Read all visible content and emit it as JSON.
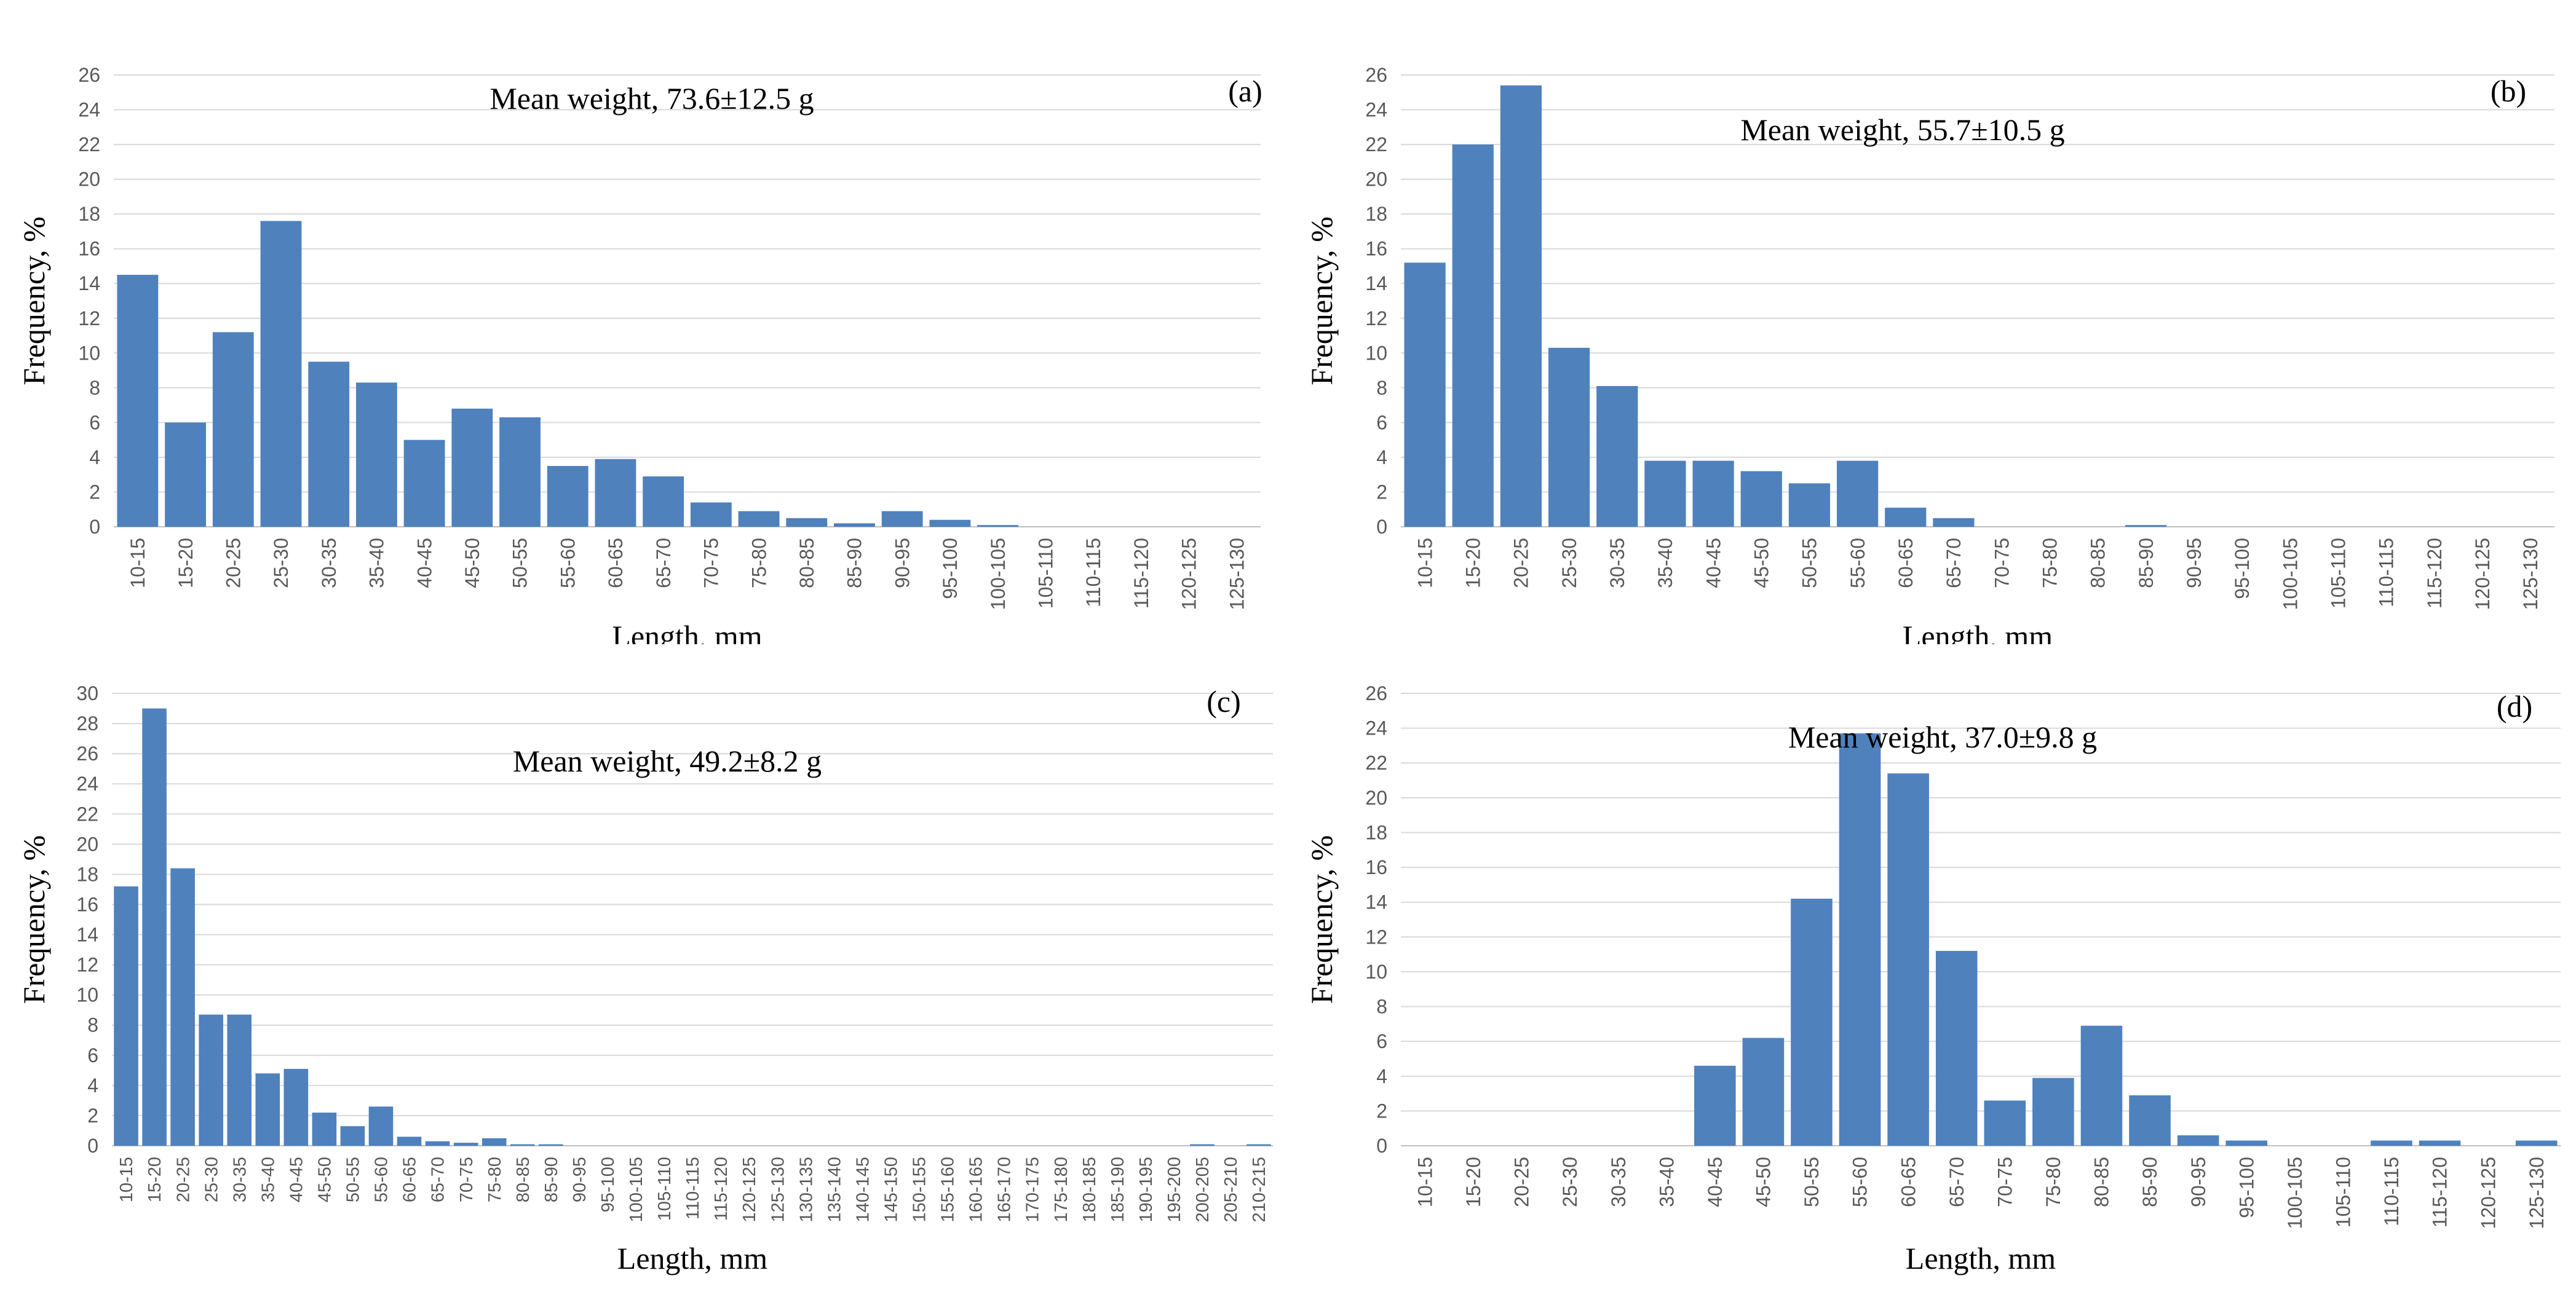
{
  "chart_data": [
    {
      "type": "bar",
      "panel_label": "(a)",
      "annotation": "Mean weight, 73.6±12.5 g",
      "xlabel": "Length, mm",
      "ylabel": "Frequency, %",
      "ylim": [
        0,
        26
      ],
      "yticks": [
        0,
        2,
        4,
        6,
        8,
        10,
        12,
        14,
        16,
        18,
        20,
        22,
        24,
        26
      ],
      "grid": true,
      "color": "#4f81bd",
      "categories": [
        "10-15",
        "15-20",
        "20-25",
        "25-30",
        "30-35",
        "35-40",
        "40-45",
        "45-50",
        "50-55",
        "55-60",
        "60-65",
        "65-70",
        "70-75",
        "75-80",
        "80-85",
        "85-90",
        "90-95",
        "95-100",
        "100-105",
        "105-110",
        "110-115",
        "115-120",
        "120-125",
        "125-130"
      ],
      "values": [
        14.5,
        6.0,
        11.2,
        17.6,
        9.5,
        8.3,
        5.0,
        6.8,
        6.3,
        3.5,
        3.9,
        2.9,
        1.4,
        0.9,
        0.5,
        0.2,
        0.9,
        0.4,
        0.1,
        0,
        0,
        0,
        0,
        0
      ]
    },
    {
      "type": "bar",
      "panel_label": "(b)",
      "annotation": "Mean weight, 55.7±10.5 g",
      "xlabel": "Length, mm",
      "ylabel": "Frequency, %",
      "ylim": [
        0,
        26
      ],
      "yticks": [
        0,
        2,
        4,
        6,
        8,
        10,
        12,
        14,
        16,
        18,
        20,
        22,
        24,
        26
      ],
      "grid": true,
      "color": "#4f81bd",
      "categories": [
        "10-15",
        "15-20",
        "20-25",
        "25-30",
        "30-35",
        "35-40",
        "40-45",
        "45-50",
        "50-55",
        "55-60",
        "60-65",
        "65-70",
        "70-75",
        "75-80",
        "80-85",
        "85-90",
        "90-95",
        "95-100",
        "100-105",
        "105-110",
        "110-115",
        "115-120",
        "120-125",
        "125-130"
      ],
      "values": [
        15.2,
        22.0,
        25.4,
        10.3,
        8.1,
        3.8,
        3.8,
        3.2,
        2.5,
        3.8,
        1.1,
        0.5,
        0,
        0,
        0,
        0.1,
        0,
        0,
        0,
        0,
        0,
        0,
        0,
        0
      ]
    },
    {
      "type": "bar",
      "panel_label": "(c)",
      "annotation": "Mean weight, 49.2±8.2 g",
      "xlabel": "Length, mm",
      "ylabel": "Frequency, %",
      "ylim": [
        0,
        30
      ],
      "yticks": [
        0,
        2,
        4,
        6,
        8,
        10,
        12,
        14,
        16,
        18,
        20,
        22,
        24,
        26,
        28,
        30
      ],
      "grid": true,
      "color": "#4f81bd",
      "categories": [
        "10-15",
        "15-20",
        "20-25",
        "25-30",
        "30-35",
        "35-40",
        "40-45",
        "45-50",
        "50-55",
        "55-60",
        "60-65",
        "65-70",
        "70-75",
        "75-80",
        "80-85",
        "85-90",
        "90-95",
        "95-100",
        "100-105",
        "105-110",
        "110-115",
        "115-120",
        "120-125",
        "125-130",
        "130-135",
        "135-140",
        "140-145",
        "145-150",
        "150-155",
        "155-160",
        "160-165",
        "165-170",
        "170-175",
        "175-180",
        "180-185",
        "185-190",
        "190-195",
        "195-200",
        "200-205",
        "205-210",
        "210-215"
      ],
      "values": [
        17.2,
        29.0,
        18.4,
        8.7,
        8.7,
        4.8,
        5.1,
        2.2,
        1.3,
        2.6,
        0.6,
        0.3,
        0.2,
        0.5,
        0.1,
        0.1,
        0,
        0,
        0,
        0,
        0,
        0,
        0,
        0,
        0,
        0,
        0,
        0,
        0,
        0,
        0,
        0,
        0,
        0,
        0,
        0,
        0,
        0,
        0.1,
        0,
        0.1
      ]
    },
    {
      "type": "bar",
      "panel_label": "(d)",
      "annotation": "Mean weight, 37.0±9.8 g",
      "xlabel": "Length, mm",
      "ylabel": "Frequency, %",
      "ylim": [
        0,
        26
      ],
      "yticks": [
        0,
        2,
        4,
        6,
        8,
        10,
        12,
        14,
        16,
        18,
        20,
        22,
        24,
        26
      ],
      "grid": true,
      "color": "#4f81bd",
      "categories": [
        "10-15",
        "15-20",
        "20-25",
        "25-30",
        "30-35",
        "35-40",
        "40-45",
        "45-50",
        "50-55",
        "55-60",
        "60-65",
        "65-70",
        "70-75",
        "75-80",
        "80-85",
        "85-90",
        "90-95",
        "95-100",
        "100-105",
        "105-110",
        "110-115",
        "115-120",
        "120-125",
        "125-130"
      ],
      "values": [
        0,
        0,
        0,
        0,
        0,
        0,
        4.6,
        6.2,
        14.2,
        23.7,
        21.4,
        11.2,
        2.6,
        3.9,
        6.9,
        2.9,
        0.6,
        0.3,
        0,
        0,
        0.3,
        0.3,
        0,
        0.3
      ]
    }
  ]
}
